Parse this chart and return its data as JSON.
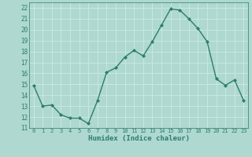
{
  "x": [
    0,
    1,
    2,
    3,
    4,
    5,
    6,
    7,
    8,
    9,
    10,
    11,
    12,
    13,
    14,
    15,
    16,
    17,
    18,
    19,
    20,
    21,
    22,
    23
  ],
  "y": [
    14.9,
    13.0,
    13.1,
    12.2,
    11.9,
    11.9,
    11.4,
    13.5,
    16.1,
    16.5,
    17.5,
    18.1,
    17.6,
    18.9,
    20.4,
    21.9,
    21.8,
    21.0,
    20.1,
    18.9,
    15.5,
    14.9,
    15.4,
    13.5
  ],
  "xlim": [
    -0.5,
    23.5
  ],
  "ylim": [
    11,
    22.5
  ],
  "yticks": [
    11,
    12,
    13,
    14,
    15,
    16,
    17,
    18,
    19,
    20,
    21,
    22
  ],
  "xticks": [
    0,
    1,
    2,
    3,
    4,
    5,
    6,
    7,
    8,
    9,
    10,
    11,
    12,
    13,
    14,
    15,
    16,
    17,
    18,
    19,
    20,
    21,
    22,
    23
  ],
  "xlabel": "Humidex (Indice chaleur)",
  "line_color": "#2e7d6e",
  "marker": "D",
  "marker_size": 2.0,
  "bg_color": "#aed8d0",
  "grid_color": "#c8e8e2",
  "label_color": "#2e7d6e"
}
